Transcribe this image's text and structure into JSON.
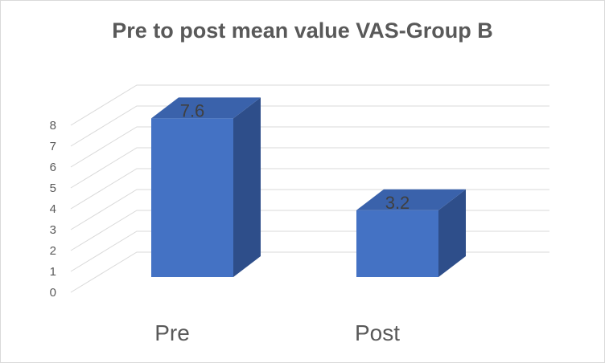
{
  "chart_data": {
    "type": "bar",
    "title": "Pre to post mean value VAS-Group B",
    "categories": [
      "Pre",
      "Post"
    ],
    "values": [
      7.6,
      3.2
    ],
    "data_labels": [
      "7.6",
      "3.2"
    ],
    "y_ticks": [
      "0",
      "1",
      "2",
      "3",
      "4",
      "5",
      "6",
      "7",
      "8"
    ],
    "ylim": [
      0,
      8
    ],
    "grid": true,
    "legend": "none",
    "style": "3d-clustered-column",
    "colors": {
      "front": "#4472c4",
      "side": "#2e4e8a",
      "top": "#3a62ab"
    }
  }
}
